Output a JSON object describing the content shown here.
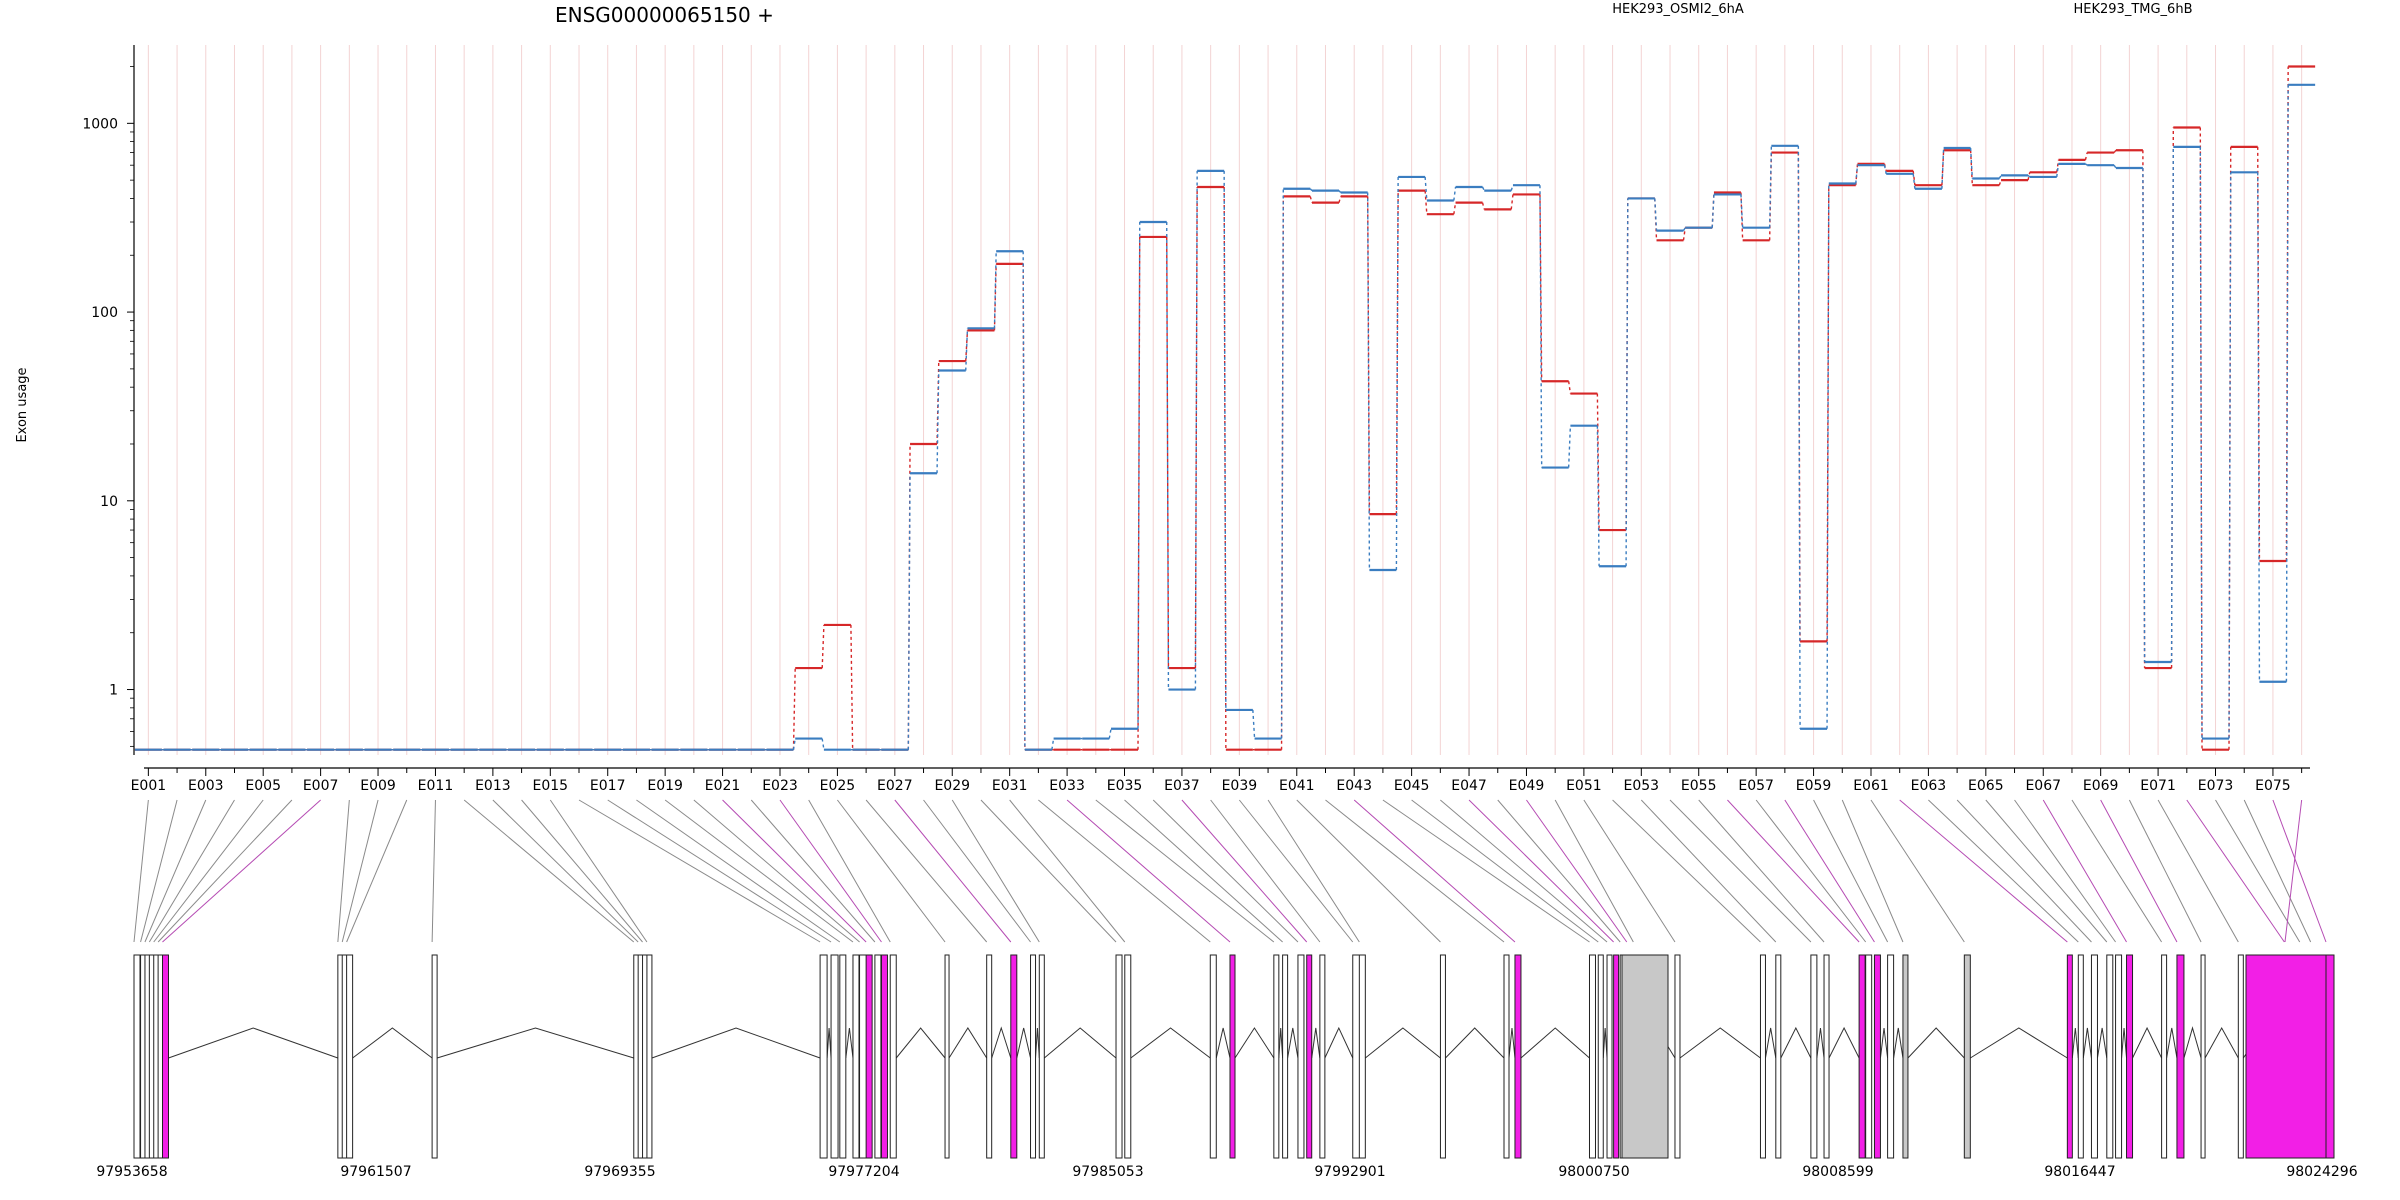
{
  "title": "ENSG00000065150 +",
  "colors": {
    "series_a": "#d62728",
    "series_b": "#3a7dc0",
    "highlight": "#f21fe6",
    "grey_exon": "#c8c8c8",
    "axis": "#000000"
  },
  "chart_data": {
    "type": "line",
    "title": "ENSG00000065150 +",
    "ylabel": "Exon usage",
    "xlabel": "",
    "y_scale": "log",
    "ylim": [
      0.45,
      2600
    ],
    "y_ticks": [
      "1",
      "10",
      "100",
      "1000"
    ],
    "legend_placement": "top",
    "grid": "vertical, one per exon",
    "x_tick_labels": [
      "E001",
      "E003",
      "E005",
      "E007",
      "E009",
      "E011",
      "E013",
      "E015",
      "E017",
      "E019",
      "E021",
      "E023",
      "E025",
      "E027",
      "E029",
      "E031",
      "E033",
      "E035",
      "E037",
      "E039",
      "E041",
      "E043",
      "E045",
      "E047",
      "E049",
      "E051",
      "E053",
      "E055",
      "E057",
      "E059",
      "E061",
      "E063",
      "E065",
      "E067",
      "E069",
      "E071",
      "E073",
      "E075"
    ],
    "categories": [
      "E001",
      "E002",
      "E003",
      "E004",
      "E005",
      "E006",
      "E007",
      "E008",
      "E009",
      "E010",
      "E011",
      "E012",
      "E013",
      "E014",
      "E015",
      "E016",
      "E017",
      "E018",
      "E019",
      "E020",
      "E021",
      "E022",
      "E023",
      "E024",
      "E025",
      "E026",
      "E027",
      "E028",
      "E029",
      "E030",
      "E031",
      "E032",
      "E033",
      "E034",
      "E035",
      "E036",
      "E037",
      "E038",
      "E039",
      "E040",
      "E041",
      "E042",
      "E043",
      "E044",
      "E045",
      "E046",
      "E047",
      "E048",
      "E049",
      "E050",
      "E051",
      "E052",
      "E053",
      "E054",
      "E055",
      "E056",
      "E057",
      "E058",
      "E059",
      "E060",
      "E061",
      "E062",
      "E063",
      "E064",
      "E065",
      "E066",
      "E067",
      "E068",
      "E069",
      "E070",
      "E071",
      "E072",
      "E073",
      "E074",
      "E075",
      "E076"
    ],
    "series": [
      {
        "name": "HEK293_OSMI2_6hA",
        "values": [
          0.48,
          0.48,
          0.48,
          0.48,
          0.48,
          0.48,
          0.48,
          0.48,
          0.48,
          0.48,
          0.48,
          0.48,
          0.48,
          0.48,
          0.48,
          0.48,
          0.48,
          0.48,
          0.48,
          0.48,
          0.48,
          0.48,
          0.48,
          1.3,
          2.2,
          0.48,
          0.48,
          20,
          55,
          80,
          180,
          0.48,
          0.48,
          0.48,
          0.48,
          250,
          1.3,
          460,
          0.48,
          0.48,
          410,
          380,
          410,
          8.5,
          440,
          330,
          380,
          350,
          420,
          43,
          37,
          7,
          400,
          240,
          280,
          430,
          240,
          700,
          1.8,
          470,
          610,
          560,
          470,
          720,
          470,
          500,
          550,
          640,
          700,
          720,
          1.3,
          950,
          0.48,
          750,
          4.8,
          2000
        ]
      },
      {
        "name": "HEK293_TMG_6hB",
        "values": [
          0.48,
          0.48,
          0.48,
          0.48,
          0.48,
          0.48,
          0.48,
          0.48,
          0.48,
          0.48,
          0.48,
          0.48,
          0.48,
          0.48,
          0.48,
          0.48,
          0.48,
          0.48,
          0.48,
          0.48,
          0.48,
          0.48,
          0.48,
          0.55,
          0.48,
          0.48,
          0.48,
          14,
          49,
          82,
          210,
          0.48,
          0.55,
          0.55,
          0.62,
          300,
          1.0,
          560,
          0.78,
          0.55,
          450,
          440,
          430,
          4.3,
          520,
          390,
          460,
          440,
          470,
          15,
          25,
          4.5,
          400,
          270,
          280,
          420,
          280,
          760,
          0.62,
          480,
          600,
          540,
          450,
          740,
          510,
          530,
          520,
          610,
          600,
          580,
          1.4,
          750,
          0.55,
          550,
          1.1,
          1600
        ]
      }
    ],
    "coordinate_ticks": [
      "97953658",
      "97961507",
      "97969355",
      "97977204",
      "97985053",
      "97992901",
      "98000750",
      "98008599",
      "98016447",
      "98024296"
    ]
  }
}
